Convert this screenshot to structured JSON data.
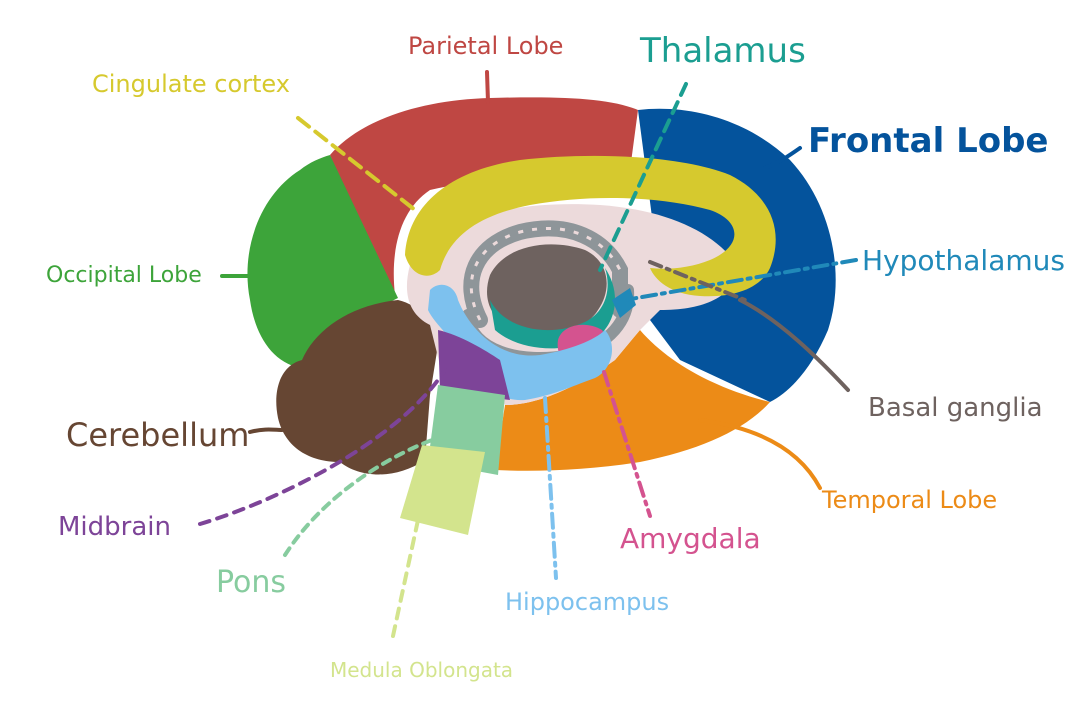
{
  "labels": {
    "parietal": "Parietal Lobe",
    "thalamus": "Thalamus",
    "cingulate": "Cingulate cortex",
    "frontal": "Frontal Lobe",
    "occipital": "Occipital Lobe",
    "hypothalamus": "Hypothalamus",
    "basal": "Basal ganglia",
    "cerebellum": "Cerebellum",
    "temporal": "Temporal Lobe",
    "midbrain": "Midbrain",
    "amygdala": "Amygdala",
    "pons": "Pons",
    "hippocampus": "Hippocampus",
    "medulla": "Medula Oblongata"
  },
  "colors": {
    "parietal": "#bf4743",
    "frontal": "#04539c",
    "occipital": "#3da43a",
    "cerebellum": "#664633",
    "temporal": "#ec8b17",
    "cingulate": "#d6c92e",
    "thalamus": "#1b9e91",
    "hypothalamus": "#2089b9",
    "basal": "#6e625f",
    "midbrain": "#7d4498",
    "pons": "#87cc9f",
    "medulla": "#d3e48d",
    "hippocampus": "#7dc1ee",
    "amygdala": "#d4538f",
    "inner": "#ecdadb",
    "gray": "#8e9599"
  }
}
